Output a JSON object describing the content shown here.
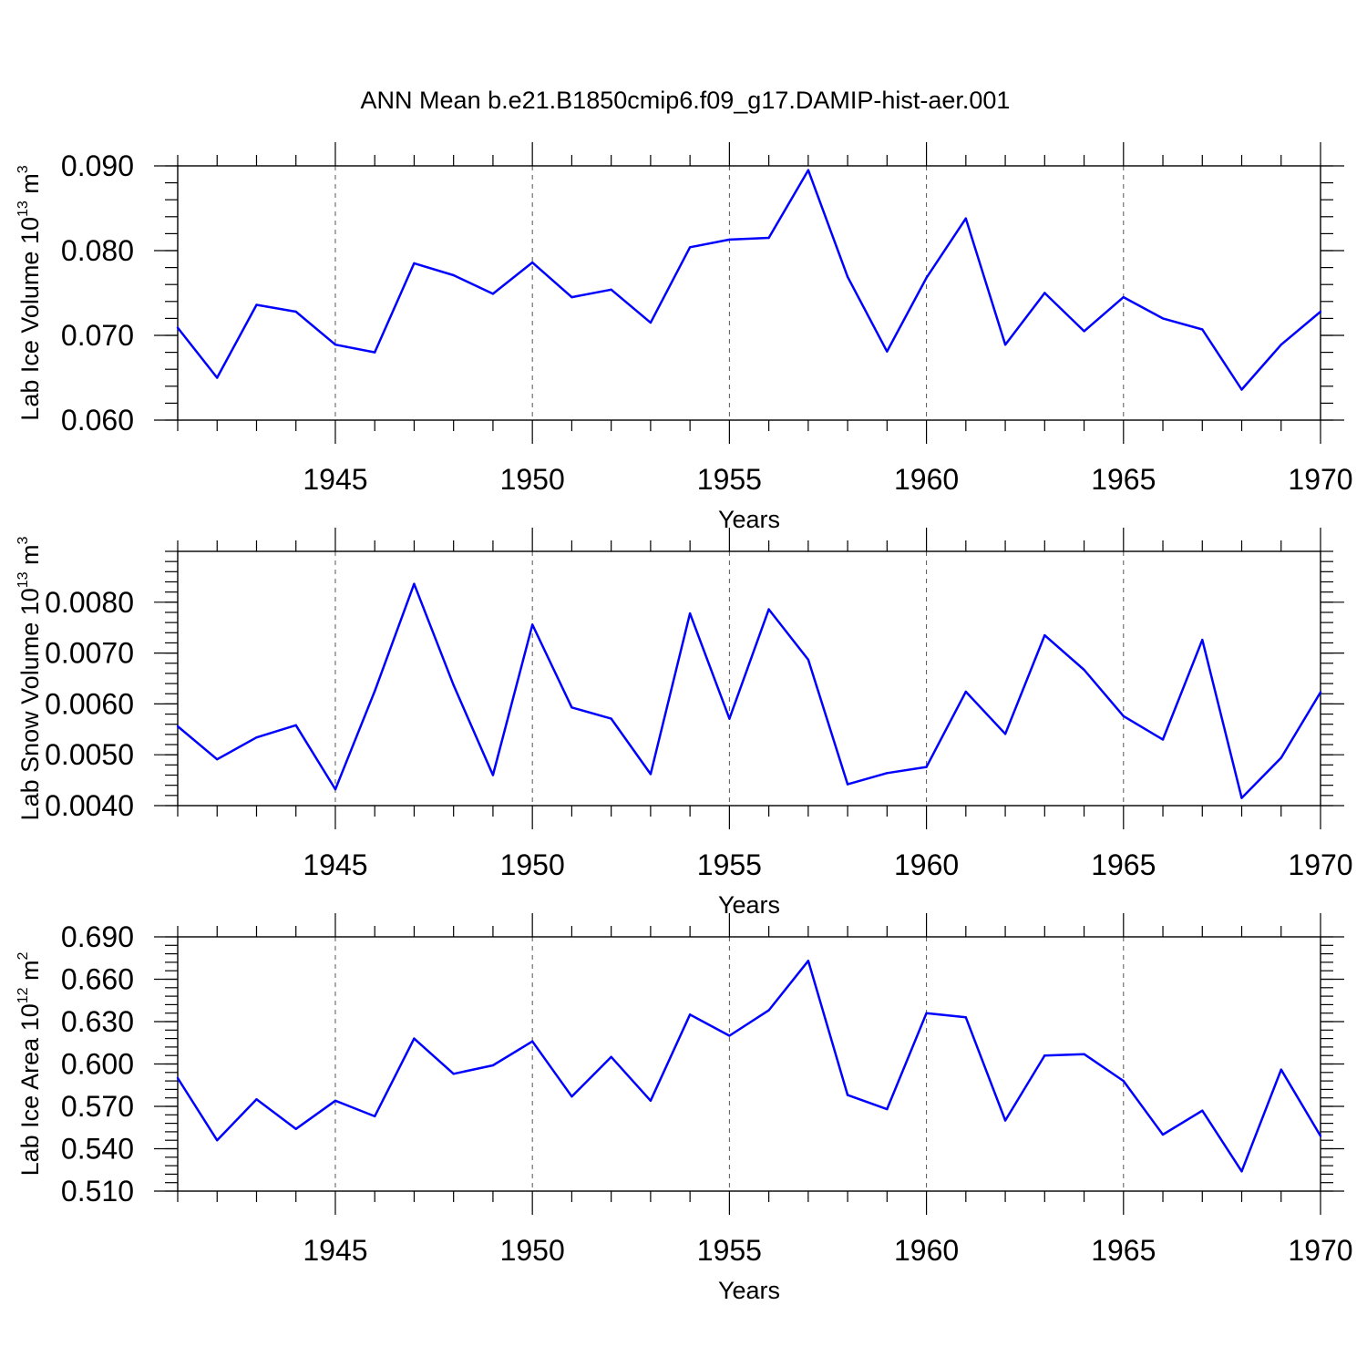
{
  "title": "ANN Mean b.e21.B1850cmip6.f09_g17.DAMIP-hist-aer.001",
  "chart_data": [
    {
      "type": "line",
      "ylabel": "Lab Ice Volume 10",
      "ylabel_sup": "13",
      "ylabel_unit": " m",
      "ylabel_unit_sup": "3",
      "xlabel": "Years",
      "xlim": [
        1941,
        1970
      ],
      "ylim": [
        0.06,
        0.09
      ],
      "x_ticks": [
        1945,
        1950,
        1955,
        1960,
        1965,
        1970
      ],
      "x_tick_labels": [
        "1945",
        "1950",
        "1955",
        "1960",
        "1965",
        "1970"
      ],
      "y_ticks": [
        0.06,
        0.07,
        0.08,
        0.09
      ],
      "y_tick_labels": [
        "0.060",
        "0.070",
        "0.080",
        "0.090"
      ],
      "y_minor_step": 0.002,
      "grid": "vertical-dashed",
      "color": "#0000ff",
      "x": [
        1941,
        1942,
        1943,
        1944,
        1945,
        1946,
        1947,
        1948,
        1949,
        1950,
        1951,
        1952,
        1953,
        1954,
        1955,
        1956,
        1957,
        1958,
        1959,
        1960,
        1961,
        1962,
        1963,
        1964,
        1965,
        1966,
        1967,
        1968,
        1969,
        1970
      ],
      "values": [
        0.0709,
        0.065,
        0.0736,
        0.0728,
        0.0689,
        0.068,
        0.0785,
        0.0771,
        0.0749,
        0.0786,
        0.0745,
        0.0754,
        0.0715,
        0.0804,
        0.0813,
        0.0815,
        0.0895,
        0.0769,
        0.0681,
        0.0768,
        0.0838,
        0.0689,
        0.075,
        0.0705,
        0.0745,
        0.072,
        0.0707,
        0.0636,
        0.0689,
        0.0728
      ]
    },
    {
      "type": "line",
      "ylabel": "Lab Snow Volume 10",
      "ylabel_sup": "13",
      "ylabel_unit": " m",
      "ylabel_unit_sup": "3",
      "xlabel": "Years",
      "xlim": [
        1941,
        1970
      ],
      "ylim": [
        0.004,
        0.009
      ],
      "x_ticks": [
        1945,
        1950,
        1955,
        1960,
        1965,
        1970
      ],
      "x_tick_labels": [
        "1945",
        "1950",
        "1955",
        "1960",
        "1965",
        "1970"
      ],
      "y_ticks": [
        0.004,
        0.005,
        0.006,
        0.007,
        0.008
      ],
      "y_tick_labels": [
        "0.0040",
        "0.0050",
        "0.0060",
        "0.0070",
        "0.0080"
      ],
      "y_minor_step": 0.0002,
      "grid": "vertical-dashed",
      "color": "#0000ff",
      "x": [
        1941,
        1942,
        1943,
        1944,
        1945,
        1946,
        1947,
        1948,
        1949,
        1950,
        1951,
        1952,
        1953,
        1954,
        1955,
        1956,
        1957,
        1958,
        1959,
        1960,
        1961,
        1962,
        1963,
        1964,
        1965,
        1966,
        1967,
        1968,
        1969,
        1970
      ],
      "values": [
        0.00556,
        0.00491,
        0.00534,
        0.00558,
        0.00432,
        0.00625,
        0.00836,
        0.00637,
        0.0046,
        0.00756,
        0.00593,
        0.00571,
        0.00462,
        0.00778,
        0.00571,
        0.00786,
        0.00687,
        0.00442,
        0.00464,
        0.00476,
        0.00624,
        0.00541,
        0.00735,
        0.00667,
        0.00576,
        0.0053,
        0.00726,
        0.00415,
        0.00494,
        0.00623
      ]
    },
    {
      "type": "line",
      "ylabel": "Lab Ice Area 10",
      "ylabel_sup": "12",
      "ylabel_unit": " m",
      "ylabel_unit_sup": "2",
      "xlabel": "Years",
      "xlim": [
        1941,
        1970
      ],
      "ylim": [
        0.51,
        0.69
      ],
      "x_ticks": [
        1945,
        1950,
        1955,
        1960,
        1965,
        1970
      ],
      "x_tick_labels": [
        "1945",
        "1950",
        "1955",
        "1960",
        "1965",
        "1970"
      ],
      "y_ticks": [
        0.51,
        0.54,
        0.57,
        0.6,
        0.63,
        0.66,
        0.69
      ],
      "y_tick_labels": [
        "0.510",
        "0.540",
        "0.570",
        "0.600",
        "0.630",
        "0.660",
        "0.690"
      ],
      "y_minor_step": 0.006,
      "grid": "vertical-dashed",
      "color": "#0000ff",
      "x": [
        1941,
        1942,
        1943,
        1944,
        1945,
        1946,
        1947,
        1948,
        1949,
        1950,
        1951,
        1952,
        1953,
        1954,
        1955,
        1956,
        1957,
        1958,
        1959,
        1960,
        1961,
        1962,
        1963,
        1964,
        1965,
        1966,
        1967,
        1968,
        1969,
        1970
      ],
      "values": [
        0.59,
        0.546,
        0.575,
        0.554,
        0.574,
        0.563,
        0.618,
        0.593,
        0.599,
        0.616,
        0.577,
        0.605,
        0.574,
        0.635,
        0.62,
        0.638,
        0.673,
        0.578,
        0.568,
        0.636,
        0.633,
        0.56,
        0.606,
        0.607,
        0.588,
        0.55,
        0.567,
        0.524,
        0.596,
        0.549
      ]
    }
  ]
}
